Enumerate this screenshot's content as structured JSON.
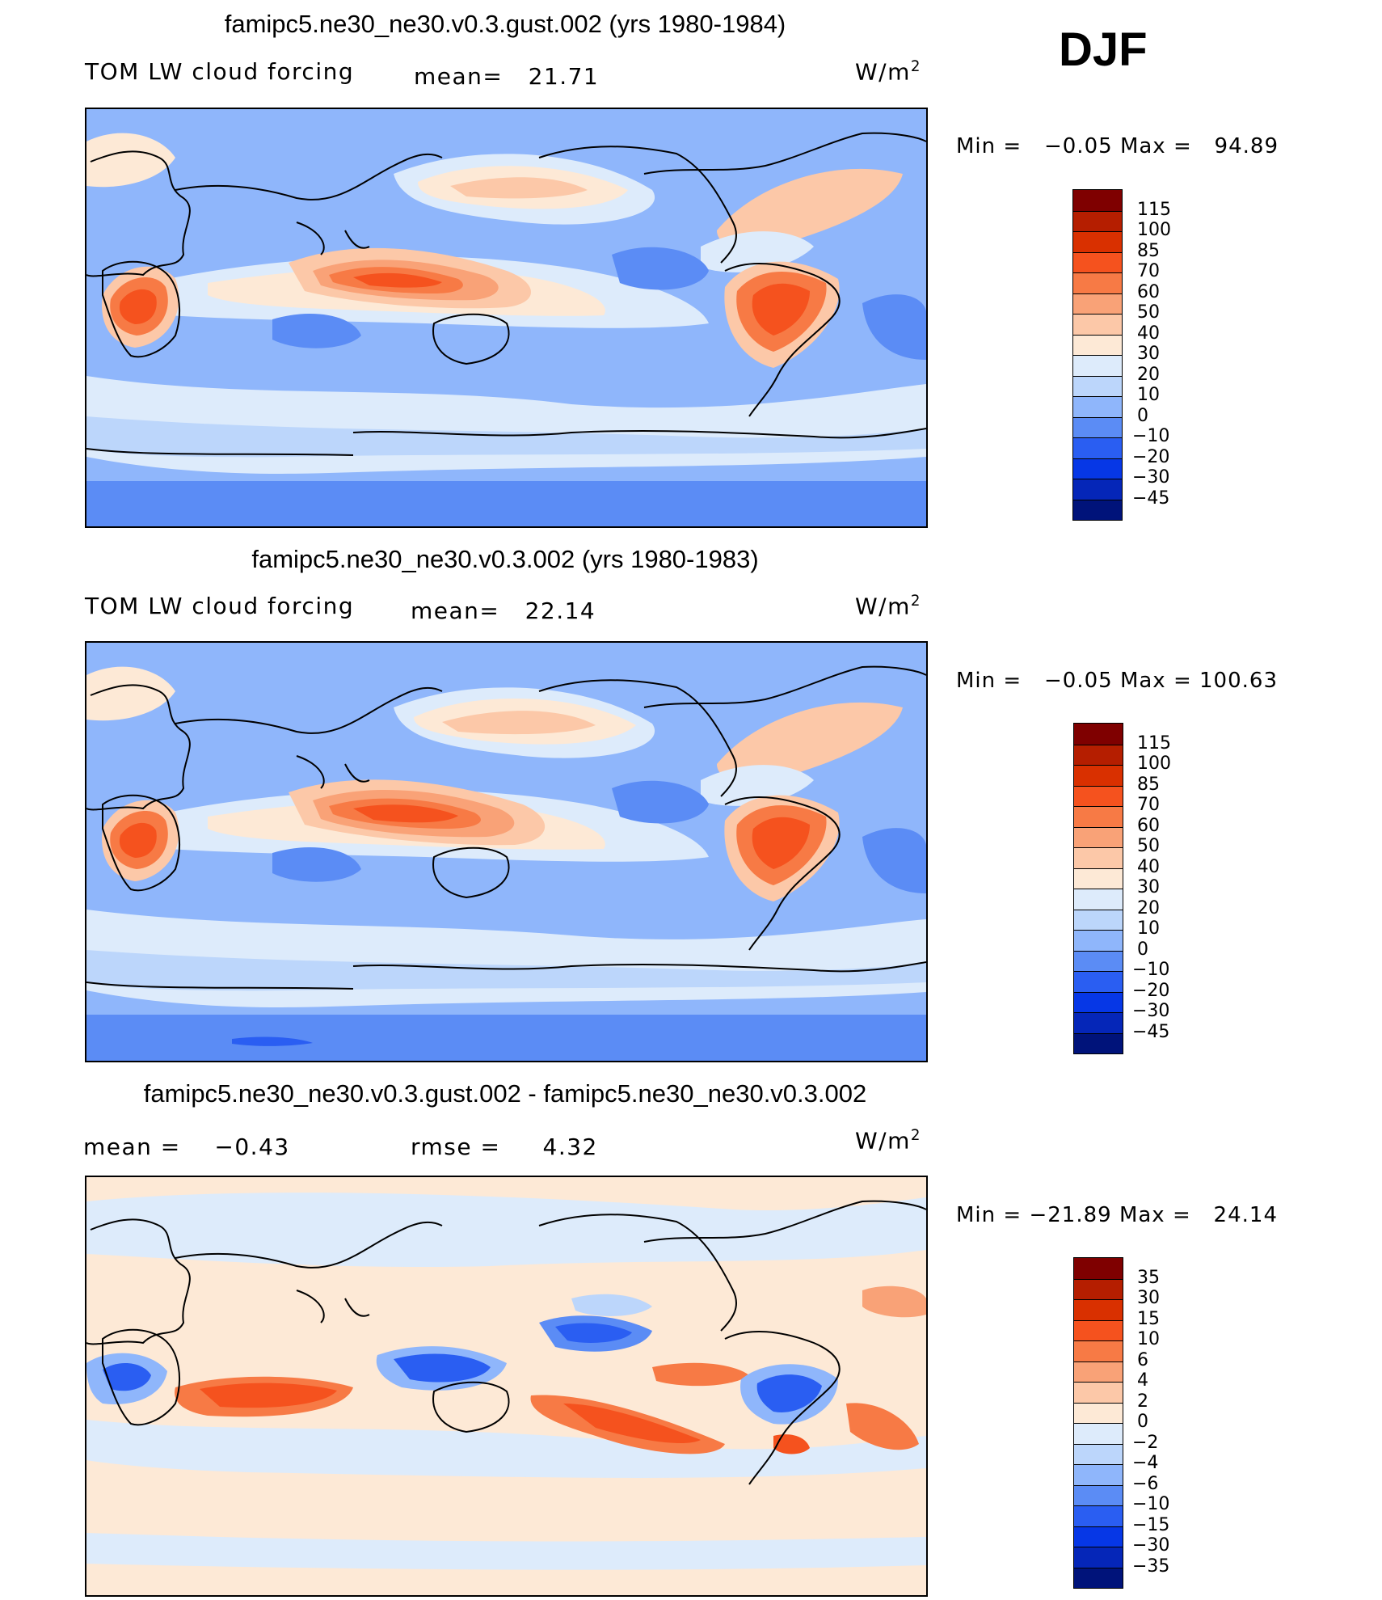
{
  "season": "DJF",
  "chart_data": [
    {
      "type": "heatmap",
      "title": "famipc5.ne30_ne30.v0.3.gust.002 (yrs 1980-1984)",
      "variable": "TOM LW cloud forcing",
      "mean_label": "mean=",
      "mean_value": "21.71",
      "units": "W/m",
      "units_sup": "2",
      "min_label": "Min  =",
      "min_value": "−0.05",
      "max_label": "Max  =",
      "max_value": "94.89",
      "colorbar": {
        "levels": [
          "115",
          "100",
          "85",
          "70",
          "60",
          "50",
          "40",
          "30",
          "20",
          "10",
          "0",
          "−10",
          "−20",
          "−30",
          "−45"
        ],
        "colors": [
          "#7f0000",
          "#b51e00",
          "#d93000",
          "#f5521e",
          "#f77a45",
          "#f9a277",
          "#fcc8a8",
          "#fde9d6",
          "#ddebfb",
          "#bcd6fb",
          "#8fb6fb",
          "#5b8cf5",
          "#2a5ef2",
          "#0637e6",
          "#0526b8",
          "#00137a"
        ]
      },
      "field": "background",
      "background_color": "#8fb6fb"
    },
    {
      "type": "heatmap",
      "title": "famipc5.ne30_ne30.v0.3.002 (yrs 1980-1983)",
      "variable": "TOM LW cloud forcing",
      "mean_label": "mean=",
      "mean_value": "22.14",
      "units": "W/m",
      "units_sup": "2",
      "min_label": "Min  =",
      "min_value": "−0.05",
      "max_label": "Max  =",
      "max_value": "100.63",
      "colorbar": {
        "levels": [
          "115",
          "100",
          "85",
          "70",
          "60",
          "50",
          "40",
          "30",
          "20",
          "10",
          "0",
          "−10",
          "−20",
          "−30",
          "−45"
        ],
        "colors": [
          "#7f0000",
          "#b51e00",
          "#d93000",
          "#f5521e",
          "#f77a45",
          "#f9a277",
          "#fcc8a8",
          "#fde9d6",
          "#ddebfb",
          "#bcd6fb",
          "#8fb6fb",
          "#5b8cf5",
          "#2a5ef2",
          "#0637e6",
          "#0526b8",
          "#00137a"
        ]
      },
      "background_color": "#8fb6fb"
    },
    {
      "type": "heatmap",
      "title": "famipc5.ne30_ne30.v0.3.gust.002 - famipc5.ne30_ne30.v0.3.002",
      "mean_label": "mean  =",
      "mean_value": "−0.43",
      "rmse_label": "rmse  =",
      "rmse_value": "4.32",
      "units": "W/m",
      "units_sup": "2",
      "min_label": "Min  =",
      "min_value": "−21.89",
      "max_label": "Max  =",
      "max_value": "24.14",
      "colorbar": {
        "levels": [
          "35",
          "30",
          "15",
          "10",
          "6",
          "4",
          "2",
          "0",
          "−2",
          "−4",
          "−6",
          "−10",
          "−15",
          "−30",
          "−35"
        ],
        "colors": [
          "#7f0000",
          "#b51e00",
          "#d93000",
          "#f5521e",
          "#f77a45",
          "#f9a277",
          "#fcc8a8",
          "#fde9d6",
          "#ddebfb",
          "#bcd6fb",
          "#8fb6fb",
          "#5b8cf5",
          "#2a5ef2",
          "#0637e6",
          "#0526b8",
          "#00137a"
        ]
      },
      "background_color": "#fde9d6"
    }
  ]
}
